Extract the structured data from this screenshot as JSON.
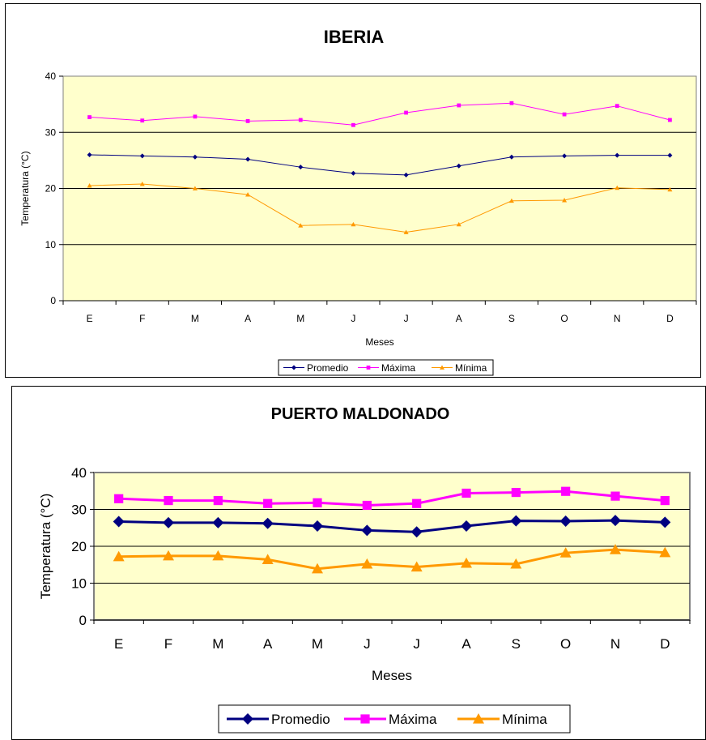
{
  "chart_data": [
    {
      "type": "line",
      "title": "IBERIA",
      "xlabel": "Meses",
      "ylabel": "Temperatura (°C)",
      "categories": [
        "E",
        "F",
        "M",
        "A",
        "M",
        "J",
        "J",
        "A",
        "S",
        "O",
        "N",
        "D"
      ],
      "ylim": [
        0,
        40
      ],
      "yticks": [
        "0",
        "10",
        "20",
        "30",
        "40"
      ],
      "grid": true,
      "legend_position": "bottom",
      "plot_background": "#FFFFCC",
      "series": [
        {
          "name": "Promedio",
          "color": "#000080",
          "marker": "diamond",
          "values": [
            26.0,
            25.8,
            25.6,
            25.2,
            23.8,
            22.7,
            22.4,
            24.0,
            25.6,
            25.8,
            25.9,
            25.9
          ]
        },
        {
          "name": "Máxima",
          "color": "#FF00FF",
          "marker": "square",
          "values": [
            32.7,
            32.1,
            32.8,
            32.0,
            32.2,
            31.3,
            33.5,
            34.8,
            35.2,
            33.2,
            34.7,
            32.2
          ]
        },
        {
          "name": "Mínima",
          "color": "#FF9900",
          "marker": "triangle",
          "values": [
            20.5,
            20.8,
            20.0,
            18.9,
            13.4,
            13.6,
            12.2,
            13.6,
            17.8,
            17.9,
            20.1,
            19.8
          ]
        }
      ]
    },
    {
      "type": "line",
      "title": "PUERTO MALDONADO",
      "xlabel": "Meses",
      "ylabel": "Temperatura (°C)",
      "categories": [
        "E",
        "F",
        "M",
        "A",
        "M",
        "J",
        "J",
        "A",
        "S",
        "O",
        "N",
        "D"
      ],
      "ylim": [
        0,
        40
      ],
      "yticks": [
        "0",
        "10",
        "20",
        "30",
        "40"
      ],
      "grid": true,
      "legend_position": "bottom",
      "plot_background": "#FFFFCC",
      "series": [
        {
          "name": "Promedio",
          "color": "#000080",
          "marker": "diamond",
          "values": [
            26.7,
            26.4,
            26.4,
            26.2,
            25.5,
            24.3,
            23.9,
            25.5,
            26.9,
            26.8,
            27.0,
            26.5
          ]
        },
        {
          "name": "Máxima",
          "color": "#FF00FF",
          "marker": "square",
          "values": [
            32.9,
            32.4,
            32.4,
            31.6,
            31.8,
            31.1,
            31.6,
            34.4,
            34.6,
            34.9,
            33.6,
            32.4
          ]
        },
        {
          "name": "Mínima",
          "color": "#FF9900",
          "marker": "triangle",
          "values": [
            17.2,
            17.4,
            17.4,
            16.4,
            13.9,
            15.2,
            14.4,
            15.4,
            15.2,
            18.2,
            19.1,
            18.3
          ]
        }
      ]
    }
  ]
}
